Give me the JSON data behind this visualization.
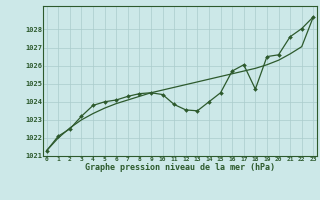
{
  "x_values": [
    0,
    1,
    2,
    3,
    4,
    5,
    6,
    7,
    8,
    9,
    10,
    11,
    12,
    13,
    14,
    15,
    16,
    17,
    18,
    19,
    20,
    21,
    22,
    23
  ],
  "y_main": [
    1021.3,
    1022.1,
    1022.5,
    1023.2,
    1023.8,
    1024.0,
    1024.1,
    1024.3,
    1024.45,
    1024.5,
    1024.4,
    1023.85,
    1023.55,
    1023.5,
    1024.0,
    1024.5,
    1025.7,
    1026.05,
    1024.7,
    1026.5,
    1026.6,
    1027.6,
    1028.05,
    1028.7
  ],
  "y_smooth": [
    1021.3,
    1022.0,
    1022.55,
    1023.0,
    1023.35,
    1023.65,
    1023.9,
    1024.1,
    1024.3,
    1024.5,
    1024.65,
    1024.8,
    1024.95,
    1025.1,
    1025.25,
    1025.4,
    1025.55,
    1025.7,
    1025.85,
    1026.05,
    1026.3,
    1026.65,
    1027.05,
    1028.7
  ],
  "line_color": "#2d5a2d",
  "bg_color": "#cce8e8",
  "grid_color": "#aacccc",
  "xlabel": "Graphe pression niveau de la mer (hPa)",
  "ylim_min": 1021,
  "ylim_max": 1029,
  "yticks": [
    1021,
    1022,
    1023,
    1024,
    1025,
    1026,
    1027,
    1028
  ],
  "xticks": [
    0,
    1,
    2,
    3,
    4,
    5,
    6,
    7,
    8,
    9,
    10,
    11,
    12,
    13,
    14,
    15,
    16,
    17,
    18,
    19,
    20,
    21,
    22,
    23
  ],
  "marker_size": 2.0,
  "line_width": 0.9
}
